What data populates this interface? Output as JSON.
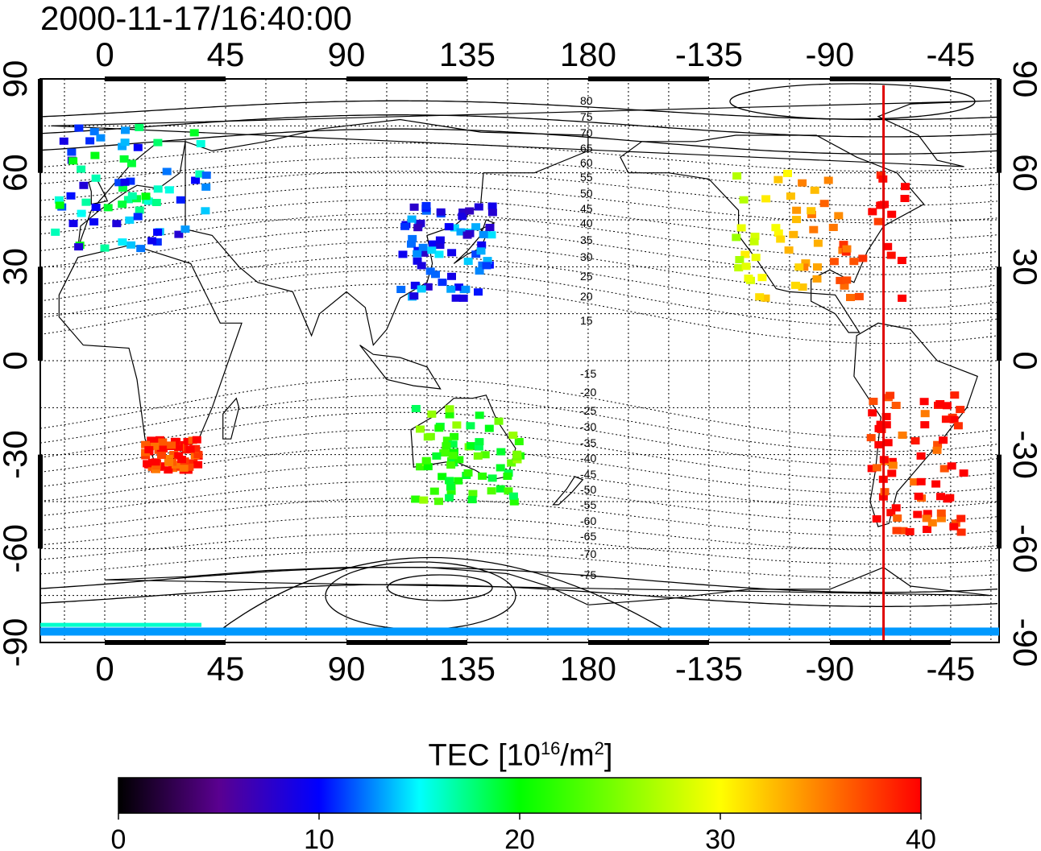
{
  "title": "2000-11-17/16:40:00",
  "map": {
    "lon_ticks_bottom": [
      "0",
      "45",
      "90",
      "135",
      "180",
      "-135",
      "-90",
      "-45"
    ],
    "lon_ticks_top": [
      "0",
      "45",
      "90",
      "135",
      "180",
      "-135",
      "-90",
      "-45"
    ],
    "lat_ticks": [
      "90",
      "60",
      "30",
      "0",
      "-30",
      "-60",
      "-90"
    ],
    "contour_labels": [
      "80",
      "75",
      "70",
      "65",
      "60",
      "55",
      "50",
      "45",
      "40",
      "35",
      "30",
      "25",
      "20",
      "15",
      "-15",
      "-20",
      "-25",
      "-30",
      "-35",
      "-40",
      "-45",
      "-50",
      "-55",
      "-60",
      "-65",
      "-70",
      "-75"
    ],
    "marker_longitude": -70,
    "marker_color": "#e00000"
  },
  "colorbar": {
    "label_main": "TEC  [10",
    "label_exp1": "16",
    "label_mid": "/m",
    "label_exp2": "2",
    "label_end": "]",
    "ticks": [
      "0",
      "10",
      "20",
      "30",
      "40"
    ],
    "range": [
      0,
      40
    ],
    "colors": [
      "#000000",
      "#5a0090",
      "#0000ff",
      "#00ffff",
      "#00ff00",
      "#ffff00",
      "#ff8000",
      "#ff0000"
    ]
  },
  "tec_regions": [
    {
      "name": "europe",
      "lon_range": [
        -20,
        40
      ],
      "lat_range": [
        35,
        75
      ],
      "tec": 18
    },
    {
      "name": "north-america",
      "lon_range": [
        -125,
        -60
      ],
      "lat_range": [
        20,
        60
      ],
      "tec": 38
    },
    {
      "name": "east-asia",
      "lon_range": [
        110,
        145
      ],
      "lat_range": [
        20,
        50
      ],
      "tec": 11
    },
    {
      "name": "south-america",
      "lon_range": [
        -75,
        -40
      ],
      "lat_range": [
        -55,
        -10
      ],
      "tec": 39
    },
    {
      "name": "south-africa",
      "lon_range": [
        15,
        35
      ],
      "lat_range": [
        -35,
        -25
      ],
      "tec": 39
    },
    {
      "name": "australia",
      "lon_range": [
        115,
        155
      ],
      "lat_range": [
        -45,
        -15
      ],
      "tec": 22
    },
    {
      "name": "antarctic-band",
      "lon_range": [
        -180,
        180
      ],
      "lat_range": [
        -88,
        -86
      ],
      "tec": 13
    }
  ]
}
